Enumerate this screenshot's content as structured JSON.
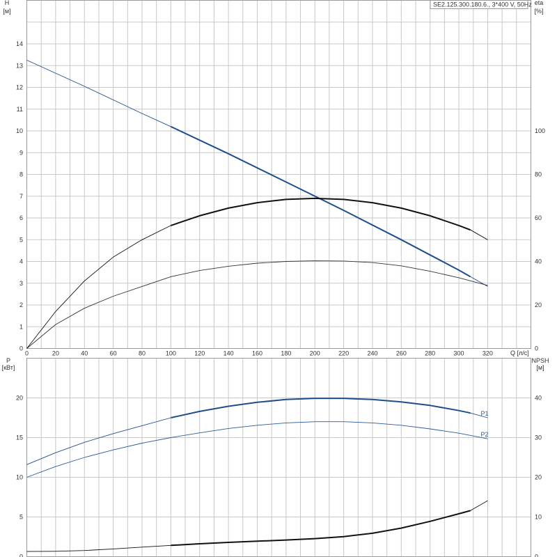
{
  "chart_data": [
    {
      "type": "line",
      "title": "SE2.125.300.180.6., 3*400 V, 50Hz",
      "xlabel": "Q [л/с]",
      "ylabel": "H [м]",
      "ylabel_line1": "H",
      "ylabel_line2": "[м]",
      "y2label_line1": "eta",
      "y2label_line2": "[%]",
      "xlim": [
        0,
        350
      ],
      "ylim": [
        0,
        16
      ],
      "y2lim": [
        0,
        160
      ],
      "x_ticks": [
        0,
        20,
        40,
        60,
        80,
        100,
        120,
        140,
        160,
        180,
        200,
        220,
        240,
        260,
        280,
        300,
        320
      ],
      "y_ticks": [
        0,
        1,
        2,
        3,
        4,
        5,
        6,
        7,
        8,
        9,
        10,
        11,
        12,
        13,
        14
      ],
      "y2_ticks": [
        0,
        20,
        40,
        60,
        80,
        100
      ],
      "grid": true,
      "series": [
        {
          "color": "#1f4e8c",
          "axis": "left",
          "x": [
            0,
            40,
            80,
            100,
            140,
            180,
            220,
            260,
            300,
            308,
            320
          ],
          "y": [
            13.25,
            12.05,
            10.8,
            10.2,
            8.95,
            7.65,
            6.35,
            5.0,
            3.6,
            3.3,
            2.85
          ],
          "highlight_range": [
            100,
            308
          ]
        },
        {
          "color": "#333333",
          "axis": "left",
          "x": [
            0,
            20,
            40,
            60,
            80,
            100,
            120,
            140,
            160,
            180,
            200,
            220,
            240,
            260,
            280,
            300,
            320
          ],
          "y": [
            0,
            1.1,
            1.85,
            2.4,
            2.85,
            3.3,
            3.58,
            3.78,
            3.92,
            4.0,
            4.03,
            4.02,
            3.95,
            3.8,
            3.55,
            3.25,
            2.9
          ],
          "highlight_range": []
        },
        {
          "color": "#111111",
          "axis": "right",
          "x": [
            0,
            20,
            40,
            60,
            80,
            100,
            120,
            140,
            160,
            180,
            200,
            220,
            240,
            260,
            280,
            300,
            308,
            320
          ],
          "y": [
            0,
            17,
            31,
            42,
            50,
            56.5,
            61,
            64.5,
            67,
            68.5,
            69,
            68.5,
            67,
            64.5,
            61,
            56.5,
            54.5,
            50
          ],
          "highlight_range": [
            100,
            308
          ]
        }
      ]
    },
    {
      "type": "line",
      "title": "",
      "xlabel": "",
      "ylabel": "P [кВт]",
      "ylabel_line1": "P",
      "ylabel_line2": "[кВт]",
      "y2label_line1": "NPSH",
      "y2label_line2": "[м]",
      "xlim": [
        0,
        350
      ],
      "ylim": [
        0,
        25
      ],
      "y2lim": [
        0,
        50
      ],
      "y_ticks": [
        0,
        5,
        10,
        15,
        20
      ],
      "y2_ticks": [
        0,
        10,
        20,
        30,
        40
      ],
      "grid": true,
      "series": [
        {
          "name": "P1",
          "color": "#1f4e8c",
          "axis": "left",
          "x": [
            0,
            20,
            40,
            60,
            80,
            100,
            120,
            140,
            160,
            180,
            200,
            220,
            240,
            260,
            280,
            300,
            308,
            320
          ],
          "y": [
            11.6,
            13.1,
            14.4,
            15.5,
            16.5,
            17.5,
            18.3,
            18.95,
            19.45,
            19.8,
            19.95,
            19.95,
            19.8,
            19.5,
            19.05,
            18.4,
            18.1,
            17.5
          ],
          "highlight_range": [
            100,
            308
          ]
        },
        {
          "name": "P2",
          "color": "#2a5a9a",
          "axis": "left",
          "x": [
            0,
            20,
            40,
            60,
            80,
            100,
            120,
            140,
            160,
            180,
            200,
            220,
            240,
            260,
            280,
            300,
            320
          ],
          "y": [
            10,
            11.35,
            12.5,
            13.45,
            14.3,
            15.0,
            15.6,
            16.15,
            16.55,
            16.85,
            17.0,
            17.0,
            16.85,
            16.55,
            16.1,
            15.55,
            14.85
          ],
          "highlight_range": []
        },
        {
          "color": "#111111",
          "axis": "right",
          "x": [
            0,
            20,
            40,
            60,
            80,
            100,
            120,
            140,
            160,
            180,
            200,
            220,
            240,
            260,
            280,
            300,
            308,
            320
          ],
          "y": [
            1.3,
            1.35,
            1.55,
            1.95,
            2.4,
            2.85,
            3.25,
            3.6,
            3.9,
            4.2,
            4.55,
            5.05,
            5.9,
            7.2,
            8.9,
            10.8,
            11.6,
            14.1
          ],
          "highlight_range": [
            100,
            308
          ]
        }
      ]
    }
  ]
}
